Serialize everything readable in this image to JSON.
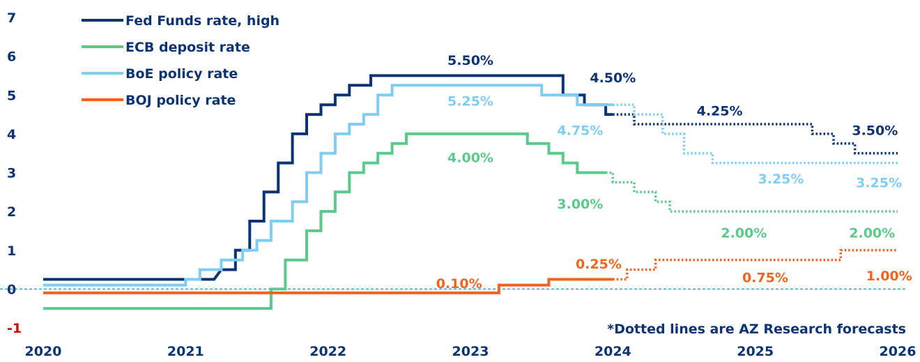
{
  "chart_data": {
    "type": "line",
    "title": "",
    "xlabel": "",
    "ylabel": "",
    "xlim": [
      2020,
      2026
    ],
    "ylim": [
      -1,
      7
    ],
    "x_ticks": [
      "2020",
      "2021",
      "2022",
      "2023",
      "2024",
      "2025",
      "2026"
    ],
    "y_ticks": [
      "-1",
      "0",
      "1",
      "2",
      "3",
      "4",
      "5",
      "6",
      "7"
    ],
    "legend_position": "top-left",
    "note": "*Dotted lines are AZ Research forecasts",
    "colors": {
      "fed": "#0d3472",
      "ecb": "#5cc98c",
      "boe": "#7fcdf2",
      "boj": "#f0641e",
      "zero_line": "#2a93c8",
      "negative_tick": "#d00000"
    },
    "series": [
      {
        "name": "Fed Funds rate, high",
        "color": "#0d3472",
        "actual": [
          [
            2020.0,
            0.25
          ],
          [
            2021.2,
            0.25
          ],
          [
            2021.2,
            0.25
          ],
          [
            2021.25,
            0.5
          ],
          [
            2021.35,
            0.5
          ],
          [
            2021.35,
            1.0
          ],
          [
            2021.45,
            1.0
          ],
          [
            2021.45,
            1.75
          ],
          [
            2021.55,
            1.75
          ],
          [
            2021.55,
            2.5
          ],
          [
            2021.65,
            2.5
          ],
          [
            2021.65,
            3.25
          ],
          [
            2021.75,
            3.25
          ],
          [
            2021.75,
            4.0
          ],
          [
            2021.85,
            4.0
          ],
          [
            2021.85,
            4.5
          ],
          [
            2021.95,
            4.5
          ],
          [
            2021.95,
            4.75
          ],
          [
            2022.05,
            4.75
          ],
          [
            2022.05,
            5.0
          ],
          [
            2022.15,
            5.0
          ],
          [
            2022.15,
            5.25
          ],
          [
            2022.3,
            5.25
          ],
          [
            2022.3,
            5.5
          ],
          [
            2023.65,
            5.5
          ],
          [
            2023.65,
            5.0
          ],
          [
            2023.8,
            5.0
          ],
          [
            2023.8,
            4.75
          ],
          [
            2023.95,
            4.75
          ],
          [
            2023.95,
            4.5
          ],
          [
            2024.0,
            4.5
          ]
        ],
        "forecast": [
          [
            2024.0,
            4.5
          ],
          [
            2024.15,
            4.5
          ],
          [
            2024.15,
            4.25
          ],
          [
            2025.4,
            4.25
          ],
          [
            2025.4,
            4.0
          ],
          [
            2025.55,
            4.0
          ],
          [
            2025.55,
            3.75
          ],
          [
            2025.7,
            3.75
          ],
          [
            2025.7,
            3.5
          ],
          [
            2026.0,
            3.5
          ]
        ]
      },
      {
        "name": "ECB deposit rate",
        "color": "#5cc98c",
        "actual": [
          [
            2020.0,
            -0.5
          ],
          [
            2021.6,
            -0.5
          ],
          [
            2021.6,
            0.0
          ],
          [
            2021.7,
            0.0
          ],
          [
            2021.7,
            0.75
          ],
          [
            2021.85,
            0.75
          ],
          [
            2021.85,
            1.5
          ],
          [
            2021.95,
            1.5
          ],
          [
            2021.95,
            2.0
          ],
          [
            2022.05,
            2.0
          ],
          [
            2022.05,
            2.5
          ],
          [
            2022.15,
            2.5
          ],
          [
            2022.15,
            3.0
          ],
          [
            2022.25,
            3.0
          ],
          [
            2022.25,
            3.25
          ],
          [
            2022.35,
            3.25
          ],
          [
            2022.35,
            3.5
          ],
          [
            2022.45,
            3.5
          ],
          [
            2022.45,
            3.75
          ],
          [
            2022.55,
            3.75
          ],
          [
            2022.55,
            4.0
          ],
          [
            2023.4,
            4.0
          ],
          [
            2023.4,
            3.75
          ],
          [
            2023.55,
            3.75
          ],
          [
            2023.55,
            3.5
          ],
          [
            2023.65,
            3.5
          ],
          [
            2023.65,
            3.25
          ],
          [
            2023.75,
            3.25
          ],
          [
            2023.75,
            3.0
          ],
          [
            2023.95,
            3.0
          ]
        ],
        "forecast": [
          [
            2023.95,
            3.0
          ],
          [
            2024.0,
            3.0
          ],
          [
            2024.0,
            2.75
          ],
          [
            2024.15,
            2.75
          ],
          [
            2024.15,
            2.5
          ],
          [
            2024.3,
            2.5
          ],
          [
            2024.3,
            2.25
          ],
          [
            2024.4,
            2.25
          ],
          [
            2024.4,
            2.0
          ],
          [
            2026.0,
            2.0
          ]
        ]
      },
      {
        "name": "BoE policy rate",
        "color": "#7fcdf2",
        "actual": [
          [
            2020.0,
            0.1
          ],
          [
            2021.0,
            0.1
          ],
          [
            2021.0,
            0.25
          ],
          [
            2021.1,
            0.25
          ],
          [
            2021.1,
            0.5
          ],
          [
            2021.25,
            0.5
          ],
          [
            2021.25,
            0.75
          ],
          [
            2021.4,
            0.75
          ],
          [
            2021.4,
            1.0
          ],
          [
            2021.5,
            1.0
          ],
          [
            2021.5,
            1.25
          ],
          [
            2021.6,
            1.25
          ],
          [
            2021.6,
            1.75
          ],
          [
            2021.75,
            1.75
          ],
          [
            2021.75,
            2.25
          ],
          [
            2021.85,
            2.25
          ],
          [
            2021.85,
            3.0
          ],
          [
            2021.95,
            3.0
          ],
          [
            2021.95,
            3.5
          ],
          [
            2022.05,
            3.5
          ],
          [
            2022.05,
            4.0
          ],
          [
            2022.15,
            4.0
          ],
          [
            2022.15,
            4.25
          ],
          [
            2022.25,
            4.25
          ],
          [
            2022.25,
            4.5
          ],
          [
            2022.35,
            4.5
          ],
          [
            2022.35,
            5.0
          ],
          [
            2022.45,
            5.0
          ],
          [
            2022.45,
            5.25
          ],
          [
            2023.5,
            5.25
          ],
          [
            2023.5,
            5.0
          ],
          [
            2023.75,
            5.0
          ],
          [
            2023.75,
            4.75
          ],
          [
            2024.0,
            4.75
          ]
        ],
        "forecast": [
          [
            2024.0,
            4.75
          ],
          [
            2024.15,
            4.75
          ],
          [
            2024.15,
            4.5
          ],
          [
            2024.35,
            4.5
          ],
          [
            2024.35,
            4.0
          ],
          [
            2024.5,
            4.0
          ],
          [
            2024.5,
            3.5
          ],
          [
            2024.7,
            3.5
          ],
          [
            2024.7,
            3.25
          ],
          [
            2026.0,
            3.25
          ]
        ]
      },
      {
        "name": "BOJ policy rate",
        "color": "#f0641e",
        "actual": [
          [
            2020.0,
            -0.1
          ],
          [
            2023.2,
            -0.1
          ],
          [
            2023.2,
            0.1
          ],
          [
            2023.55,
            0.1
          ],
          [
            2023.55,
            0.25
          ],
          [
            2024.0,
            0.25
          ]
        ],
        "forecast": [
          [
            2024.0,
            0.25
          ],
          [
            2024.1,
            0.25
          ],
          [
            2024.1,
            0.5
          ],
          [
            2024.3,
            0.5
          ],
          [
            2024.3,
            0.75
          ],
          [
            2025.6,
            0.75
          ],
          [
            2025.6,
            1.0
          ],
          [
            2026.0,
            1.0
          ]
        ]
      }
    ],
    "annotations": [
      {
        "text": "5.50%",
        "x": 2023.0,
        "y": 5.9,
        "color": "#0d3472"
      },
      {
        "text": "4.50%",
        "x": 2024.0,
        "y": 5.45,
        "color": "#0d3472"
      },
      {
        "text": "4.25%",
        "x": 2024.75,
        "y": 4.6,
        "color": "#0d3472"
      },
      {
        "text": "3.50%",
        "x": 2025.84,
        "y": 4.1,
        "color": "#0d3472"
      },
      {
        "text": "5.25%",
        "x": 2023.0,
        "y": 4.85,
        "color": "#7fcdf2"
      },
      {
        "text": "4.75%",
        "x": 2023.77,
        "y": 4.1,
        "color": "#7fcdf2"
      },
      {
        "text": "3.25%",
        "x": 2025.18,
        "y": 2.85,
        "color": "#7fcdf2"
      },
      {
        "text": "3.25%",
        "x": 2026.0,
        "y": 2.75,
        "color": "#7fcdf2"
      },
      {
        "text": "4.00%",
        "x": 2023.0,
        "y": 3.4,
        "color": "#5cc98c"
      },
      {
        "text": "3.00%",
        "x": 2023.77,
        "y": 2.2,
        "color": "#5cc98c"
      },
      {
        "text": "2.00%",
        "x": 2024.92,
        "y": 1.45,
        "color": "#5cc98c"
      },
      {
        "text": "2.00%",
        "x": 2025.82,
        "y": 1.45,
        "color": "#5cc98c"
      },
      {
        "text": "0.10%",
        "x": 2022.92,
        "y": 0.15,
        "color": "#f0641e"
      },
      {
        "text": "0.25%",
        "x": 2023.9,
        "y": 0.65,
        "color": "#f0641e"
      },
      {
        "text": "0.75%",
        "x": 2025.07,
        "y": 0.3,
        "color": "#f0641e"
      },
      {
        "text": "1.00%",
        "x": 2025.94,
        "y": 0.35,
        "color": "#f0641e"
      }
    ]
  }
}
